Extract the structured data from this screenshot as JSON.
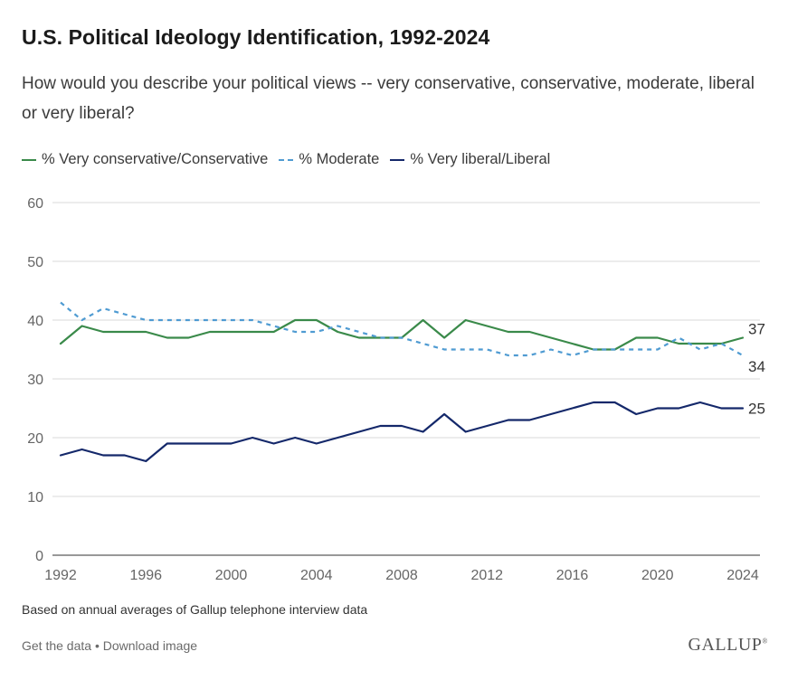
{
  "header": {
    "title": "U.S. Political Ideology Identification, 1992-2024",
    "subtitle": "How would you describe your political views -- very conservative, conservative, moderate, liberal or very liberal?"
  },
  "footer": {
    "note": "Based on annual averages of Gallup telephone interview data",
    "get_data_label": "Get the data",
    "separator": "•",
    "download_label": "Download image",
    "brand": "GALLUP",
    "brand_mark": "®"
  },
  "chart_data": {
    "type": "line",
    "x": [
      1992,
      1993,
      1994,
      1995,
      1996,
      1997,
      1998,
      1999,
      2000,
      2001,
      2002,
      2003,
      2004,
      2005,
      2006,
      2007,
      2008,
      2009,
      2010,
      2011,
      2012,
      2013,
      2014,
      2015,
      2016,
      2017,
      2018,
      2019,
      2020,
      2021,
      2022,
      2023,
      2024
    ],
    "x_ticks": [
      1992,
      1996,
      2000,
      2004,
      2008,
      2012,
      2016,
      2020,
      2024
    ],
    "y_ticks": [
      0,
      10,
      20,
      30,
      40,
      50,
      60
    ],
    "ylim": [
      0,
      60
    ],
    "grid": true,
    "legend_position": "top-left",
    "series": [
      {
        "name": "% Very conservative/Conservative",
        "color": "#3a8a4a",
        "dash": "solid",
        "end_label": "37",
        "values": [
          36,
          39,
          38,
          38,
          38,
          37,
          37,
          38,
          38,
          38,
          38,
          40,
          40,
          38,
          37,
          37,
          37,
          40,
          37,
          40,
          39,
          38,
          38,
          37,
          36,
          35,
          35,
          37,
          37,
          36,
          36,
          36,
          37
        ]
      },
      {
        "name": "% Moderate",
        "color": "#4f9bd2",
        "dash": "dashed",
        "end_label": "34",
        "values": [
          43,
          40,
          42,
          41,
          40,
          40,
          40,
          40,
          40,
          40,
          39,
          38,
          38,
          39,
          38,
          37,
          37,
          36,
          35,
          35,
          35,
          34,
          34,
          35,
          34,
          35,
          35,
          35,
          35,
          37,
          35,
          36,
          34
        ]
      },
      {
        "name": "% Very liberal/Liberal",
        "color": "#14286a",
        "dash": "solid",
        "end_label": "25",
        "values": [
          17,
          18,
          17,
          17,
          16,
          19,
          19,
          19,
          19,
          20,
          19,
          20,
          19,
          20,
          21,
          22,
          22,
          21,
          24,
          21,
          22,
          23,
          23,
          24,
          25,
          26,
          26,
          24,
          25,
          25,
          26,
          25,
          25
        ]
      }
    ]
  }
}
